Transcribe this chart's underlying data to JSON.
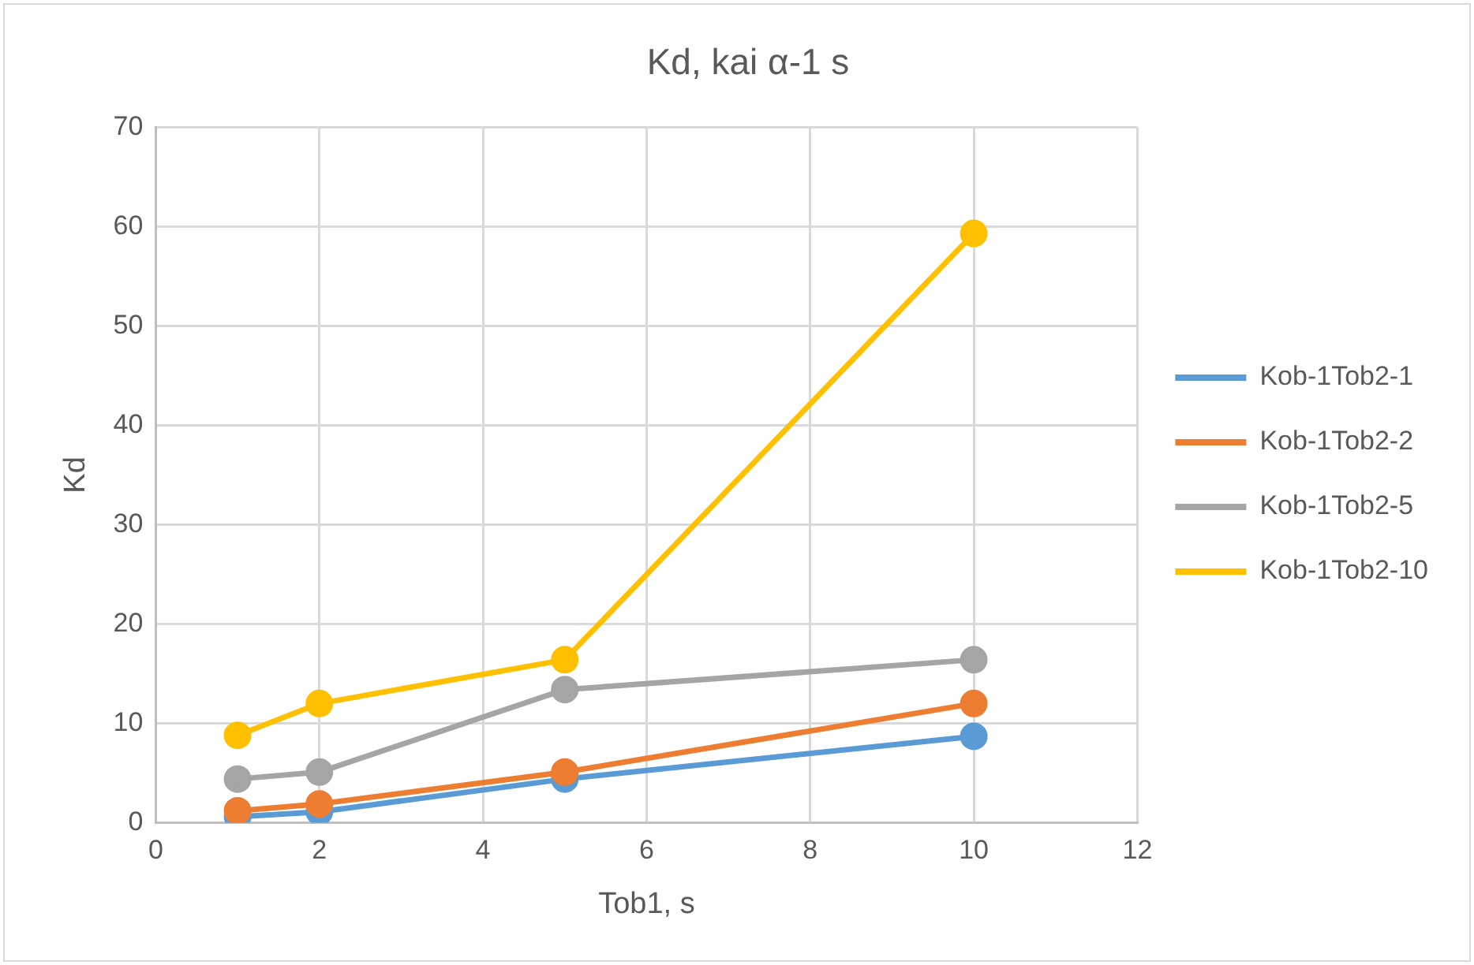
{
  "chart_data": {
    "type": "line",
    "title": "Kd, kai α-1 s",
    "xlabel": "Tob1, s",
    "ylabel": "Kd",
    "x": [
      1,
      2,
      5,
      10
    ],
    "series": [
      {
        "name": "Kob-1Tob2-1",
        "color": "#5b9bd5",
        "values": [
          0.6,
          1.1,
          4.4,
          8.7
        ]
      },
      {
        "name": "Kob-1Tob2-2",
        "color": "#ed7d31",
        "values": [
          1.2,
          1.9,
          5.1,
          12.0
        ]
      },
      {
        "name": "Kob-1Tob2-5",
        "color": "#a5a5a5",
        "values": [
          4.4,
          5.1,
          13.4,
          16.4
        ]
      },
      {
        "name": "Kob-1Tob2-10",
        "color": "#ffc000",
        "values": [
          8.8,
          12.0,
          16.4,
          59.3
        ]
      }
    ],
    "xlim": [
      0,
      12
    ],
    "xticks": [
      0,
      2,
      4,
      6,
      8,
      10,
      12
    ],
    "ylim": [
      0,
      70
    ],
    "yticks": [
      0,
      10,
      20,
      30,
      40,
      50,
      60,
      70
    ],
    "grid": true,
    "legend": "right",
    "marker": "circle",
    "line_style": "solid"
  }
}
